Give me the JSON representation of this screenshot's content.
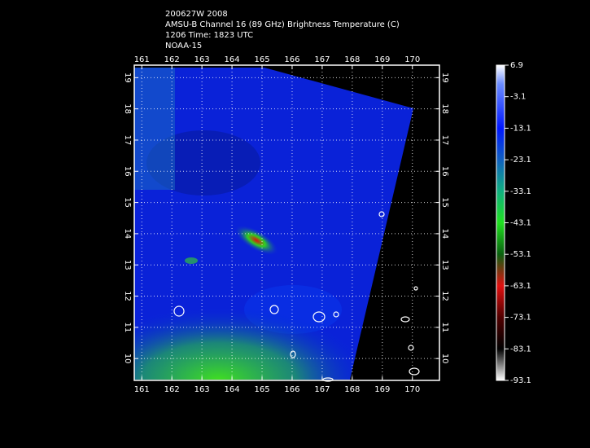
{
  "header": {
    "lines": [
      "200627W 2008",
      "AMSU-B Channel 16 (89 GHz) Brightness Temperature (C)",
      "1206 Time: 1823 UTC",
      "NOAA-15"
    ]
  },
  "map": {
    "xlim": [
      160.75,
      170.9
    ],
    "ylim": [
      9.3,
      19.4
    ],
    "xticks": [
      161,
      162,
      163,
      164,
      165,
      166,
      167,
      168,
      169,
      170
    ],
    "yticks": [
      10,
      11,
      12,
      13,
      14,
      15,
      16,
      17,
      18,
      19
    ],
    "grid": true
  },
  "colorbar": {
    "lim": [
      -93.1,
      6.9
    ],
    "ticks": [
      6.9,
      -3.1,
      -13.1,
      -23.1,
      -33.1,
      -43.1,
      -53.1,
      -63.1,
      -73.1,
      -83.1,
      -93.1
    ]
  }
}
